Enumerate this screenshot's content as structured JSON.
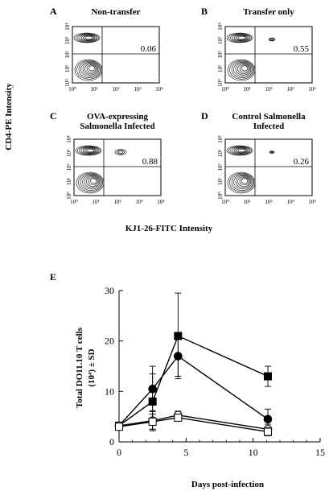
{
  "figure": {
    "y_label": "CD4-PE Intensity",
    "x_label": "KJ1-26-FITC Intensity",
    "panels": [
      {
        "letter": "A",
        "title_lines": [
          "Non-transfer"
        ],
        "percent": "0.06"
      },
      {
        "letter": "B",
        "title_lines": [
          "Transfer only"
        ],
        "percent": "0.55"
      },
      {
        "letter": "C",
        "title_lines": [
          "OVA-expressing",
          "Salmonella Infected"
        ],
        "percent": "0.88"
      },
      {
        "letter": "D",
        "title_lines": [
          "Control Salmonella",
          "Infected"
        ],
        "percent": "0.26"
      }
    ],
    "tick_labels": [
      "10⁰",
      "10¹",
      "10²",
      "10³",
      "10⁴"
    ]
  },
  "chart_data": {
    "type": "line",
    "panel_letter": "E",
    "title": "",
    "xlabel": "Days post-infection",
    "ylabel_lines": [
      "Total DO11.10 T cells",
      "(10⁴) ± SD"
    ],
    "xlim": [
      0,
      15
    ],
    "ylim": [
      0,
      30
    ],
    "x_ticks": [
      0,
      5,
      10,
      15
    ],
    "y_ticks": [
      0,
      10,
      20,
      30
    ],
    "grid": false,
    "series": [
      {
        "marker": "filled-square",
        "x": [
          0,
          2.5,
          4.4,
          11.1
        ],
        "y": [
          3.2,
          8.0,
          21.0,
          13.0
        ],
        "err": [
          0.5,
          5.5,
          8.5,
          2.0
        ]
      },
      {
        "marker": "filled-circle",
        "x": [
          0,
          2.5,
          4.4,
          11.1
        ],
        "y": [
          3.2,
          10.5,
          17.0,
          4.5
        ],
        "err": [
          0.5,
          4.5,
          4.0,
          2.0
        ]
      },
      {
        "marker": "open-circle",
        "x": [
          0,
          2.5,
          4.4,
          11.1
        ],
        "y": [
          3.2,
          4.2,
          5.3,
          2.5
        ],
        "err": [
          0.4,
          2.0,
          0.8,
          1.0
        ]
      },
      {
        "marker": "open-square",
        "x": [
          0,
          2.5,
          4.4,
          11.1
        ],
        "y": [
          3.0,
          4.0,
          4.8,
          2.0
        ],
        "err": [
          0.4,
          1.5,
          0.5,
          0.8
        ]
      }
    ]
  }
}
